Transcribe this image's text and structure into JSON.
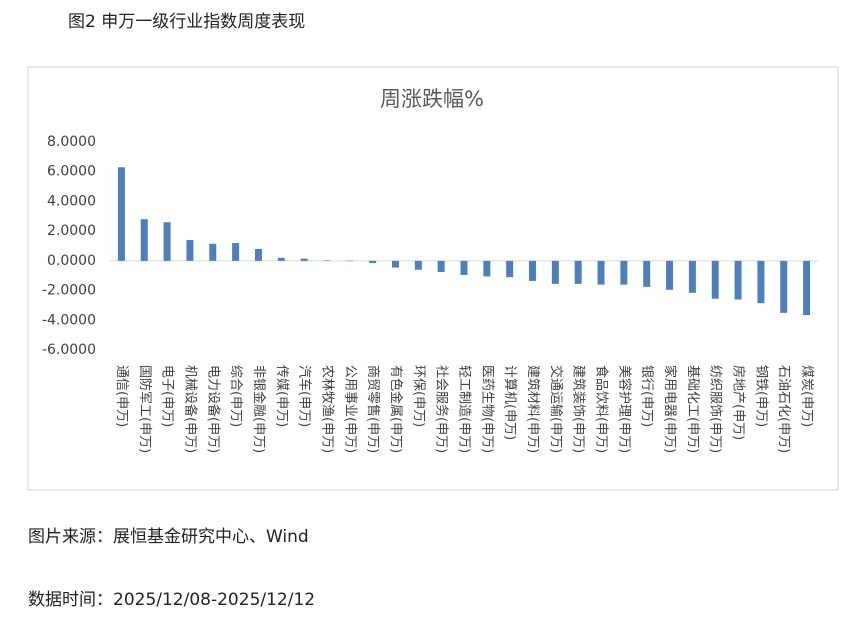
{
  "caption": "图2 申万一级行业指数周度表现",
  "chart_data": {
    "type": "bar",
    "title": "周涨跌幅%",
    "color": "#4f7fba",
    "categories": [
      "通信(申万)",
      "国防军工(申万)",
      "电子(申万)",
      "机械设备(申万)",
      "电力设备(申万)",
      "综合(申万)",
      "非银金融(申万)",
      "传媒(申万)",
      "汽车(申万)",
      "农林牧渔(申万)",
      "公用事业(申万)",
      "商贸零售(申万)",
      "有色金属(申万)",
      "环保(申万)",
      "社会服务(申万)",
      "轻工制造(申万)",
      "医药生物(申万)",
      "计算机(申万)",
      "建筑材料(申万)",
      "交通运输(申万)",
      "建筑装饰(申万)",
      "食品饮料(申万)",
      "美容护理(申万)",
      "银行(申万)",
      "家用电器(申万)",
      "基础化工(申万)",
      "纺织服饰(申万)",
      "房地产(申万)",
      "钢铁(申万)",
      "石油石化(申万)",
      "煤炭(申万)"
    ],
    "values": [
      6.3,
      2.8,
      2.6,
      1.4,
      1.15,
      1.2,
      0.8,
      0.2,
      0.15,
      0.02,
      0.01,
      -0.15,
      -0.45,
      -0.6,
      -0.75,
      -0.95,
      -1.05,
      -1.1,
      -1.35,
      -1.55,
      -1.55,
      -1.6,
      -1.6,
      -1.75,
      -1.95,
      -2.15,
      -2.55,
      -2.6,
      -2.85,
      -3.5,
      -3.65
    ],
    "ylim": [
      -6,
      8
    ],
    "yticks": [
      {
        "value": -6,
        "label": "-6.0000"
      },
      {
        "value": -4,
        "label": "-4.0000"
      },
      {
        "value": -2,
        "label": "-2.0000"
      },
      {
        "value": 0,
        "label": "0.0000"
      },
      {
        "value": 2,
        "label": "2.0000"
      },
      {
        "value": 4,
        "label": "4.0000"
      },
      {
        "value": 6,
        "label": "6.0000"
      },
      {
        "value": 8,
        "label": "8.0000"
      }
    ]
  },
  "source": "图片来源：展恒基金研究中心、Wind",
  "date": "数据时间：2025/12/08-2025/12/12"
}
